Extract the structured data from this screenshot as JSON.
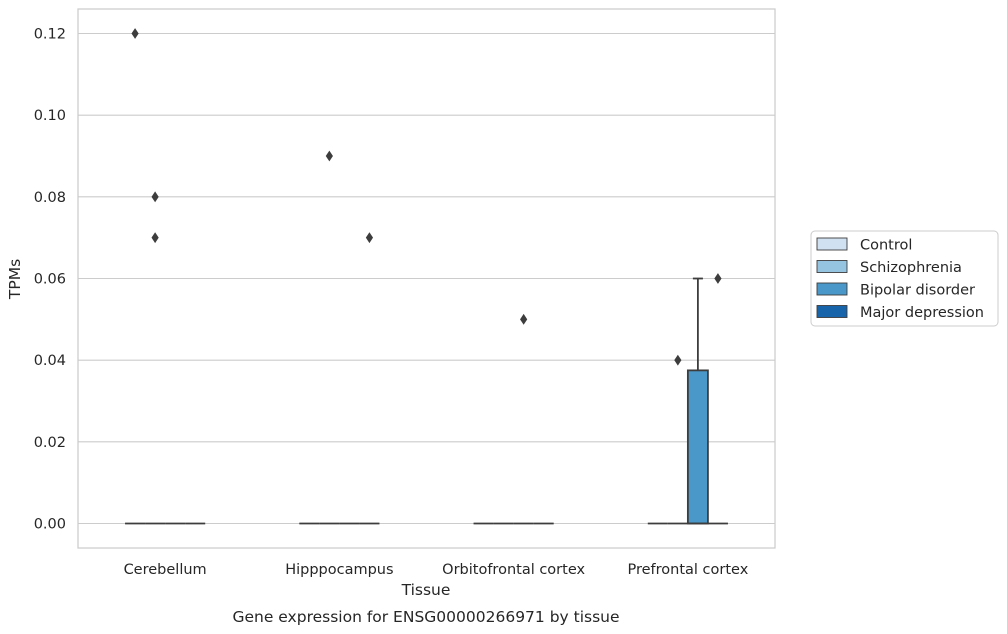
{
  "chart_data": {
    "type": "box",
    "xlabel": "Tissue",
    "ylabel": "TPMs",
    "caption": "Gene expression for ENSG00000266971 by tissue",
    "categories": [
      "Cerebellum",
      "Hipppocampus",
      "Orbitofrontal cortex",
      "Prefrontal cortex"
    ],
    "ylim": [
      -0.006,
      0.126
    ],
    "yticks": [
      0.0,
      0.02,
      0.04,
      0.06,
      0.08,
      0.1,
      0.12
    ],
    "ytick_labels": [
      "0.00",
      "0.02",
      "0.04",
      "0.06",
      "0.08",
      "0.10",
      "0.12"
    ],
    "grid": "horizontal",
    "legend_position": "right",
    "series": [
      {
        "name": "Control",
        "color": "#d0e1f2",
        "boxes": [
          {
            "q1": 0,
            "median": 0,
            "q3": 0,
            "whisker_low": 0,
            "whisker_high": 0,
            "outliers": [
              0.12
            ]
          },
          {
            "q1": 0,
            "median": 0,
            "q3": 0,
            "whisker_low": 0,
            "whisker_high": 0,
            "outliers": []
          },
          {
            "q1": 0,
            "median": 0,
            "q3": 0,
            "whisker_low": 0,
            "whisker_high": 0,
            "outliers": []
          },
          {
            "q1": 0,
            "median": 0,
            "q3": 0,
            "whisker_low": 0,
            "whisker_high": 0,
            "outliers": []
          }
        ]
      },
      {
        "name": "Schizophrenia",
        "color": "#94c4df",
        "boxes": [
          {
            "q1": 0,
            "median": 0,
            "q3": 0,
            "whisker_low": 0,
            "whisker_high": 0,
            "outliers": [
              0.08,
              0.07
            ]
          },
          {
            "q1": 0,
            "median": 0,
            "q3": 0,
            "whisker_low": 0,
            "whisker_high": 0,
            "outliers": [
              0.09
            ]
          },
          {
            "q1": 0,
            "median": 0,
            "q3": 0,
            "whisker_low": 0,
            "whisker_high": 0,
            "outliers": []
          },
          {
            "q1": 0,
            "median": 0,
            "q3": 0,
            "whisker_low": 0,
            "whisker_high": 0,
            "outliers": [
              0.04
            ]
          }
        ]
      },
      {
        "name": "Bipolar disorder",
        "color": "#4a98c9",
        "boxes": [
          {
            "q1": 0,
            "median": 0,
            "q3": 0,
            "whisker_low": 0,
            "whisker_high": 0,
            "outliers": []
          },
          {
            "q1": 0,
            "median": 0,
            "q3": 0,
            "whisker_low": 0,
            "whisker_high": 0,
            "outliers": []
          },
          {
            "q1": 0,
            "median": 0,
            "q3": 0,
            "whisker_low": 0,
            "whisker_high": 0,
            "outliers": [
              0.05
            ]
          },
          {
            "q1": 0,
            "median": 0,
            "q3": 0.0375,
            "whisker_low": 0,
            "whisker_high": 0.06,
            "outliers": []
          }
        ]
      },
      {
        "name": "Major depression",
        "color": "#1764ab",
        "boxes": [
          {
            "q1": 0,
            "median": 0,
            "q3": 0,
            "whisker_low": 0,
            "whisker_high": 0,
            "outliers": []
          },
          {
            "q1": 0,
            "median": 0,
            "q3": 0,
            "whisker_low": 0,
            "whisker_high": 0,
            "outliers": [
              0.07
            ]
          },
          {
            "q1": 0,
            "median": 0,
            "q3": 0,
            "whisker_low": 0,
            "whisker_high": 0,
            "outliers": []
          },
          {
            "q1": 0,
            "median": 0,
            "q3": 0,
            "whisker_low": 0,
            "whisker_high": 0,
            "outliers": [
              0.06
            ]
          }
        ]
      }
    ]
  }
}
